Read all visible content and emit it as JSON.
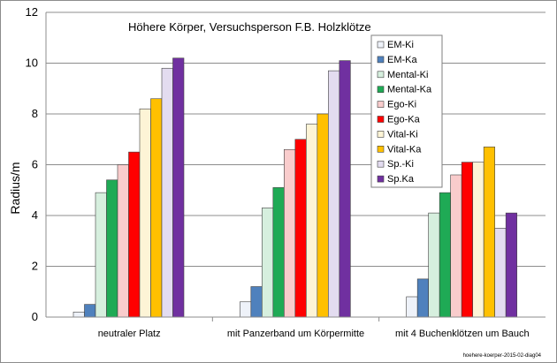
{
  "chart_data": {
    "type": "bar",
    "title": "Höhere Körper, Versuchsperson F.B. Holzklötze",
    "xlabel": "",
    "ylabel": "Radius/m",
    "ylim": [
      0,
      12
    ],
    "yticks": [
      0,
      2,
      4,
      6,
      8,
      10,
      12
    ],
    "grid": true,
    "legend_position": "top-right",
    "footnote": "hoehere-koerper-2015-02-diag04",
    "categories": [
      "neutraler Platz",
      "mit Panzerband um Körpermitte",
      "mit 4 Buchenklötzen um Bauch"
    ],
    "series": [
      {
        "name": "EM-Ki",
        "color": "#eef2f9",
        "values": [
          0.2,
          0.6,
          0.8
        ]
      },
      {
        "name": "EM-Ka",
        "color": "#4f81bd",
        "values": [
          0.5,
          1.2,
          1.5
        ]
      },
      {
        "name": "Mental-Ki",
        "color": "#d6efde",
        "values": [
          4.9,
          4.3,
          4.1
        ]
      },
      {
        "name": "Mental-Ka",
        "color": "#1faa55",
        "values": [
          5.4,
          5.1,
          4.9
        ]
      },
      {
        "name": "Ego-Ki",
        "color": "#f9cccc",
        "values": [
          6.0,
          6.6,
          5.6
        ]
      },
      {
        "name": "Ego-Ka",
        "color": "#ff0000",
        "values": [
          6.5,
          7.0,
          6.1
        ]
      },
      {
        "name": "Vital-Ki",
        "color": "#fdf4d6",
        "values": [
          8.2,
          7.6,
          6.1
        ]
      },
      {
        "name": "Vital-Ka",
        "color": "#ffc000",
        "values": [
          8.6,
          8.0,
          6.7
        ]
      },
      {
        "name": "Sp.-Ki",
        "color": "#e3dcf0",
        "values": [
          9.8,
          9.7,
          3.5
        ]
      },
      {
        "name": "Sp.Ka",
        "color": "#7030a0",
        "values": [
          10.2,
          10.1,
          4.1
        ]
      }
    ]
  }
}
